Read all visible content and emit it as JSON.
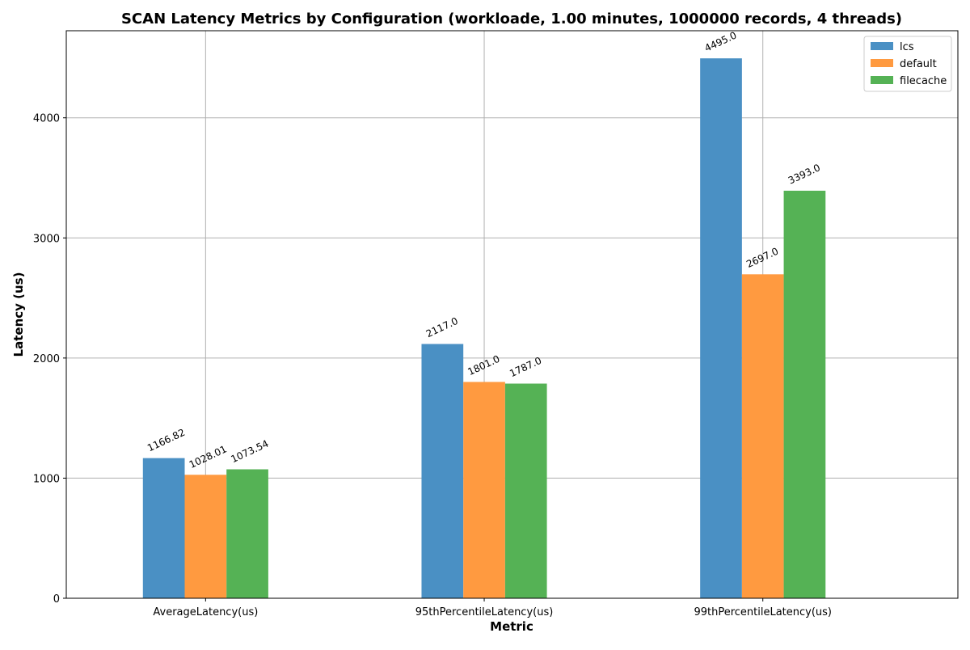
{
  "chart_data": {
    "type": "bar",
    "title": "SCAN Latency Metrics by Configuration (workloade, 1.00 minutes, 1000000 records, 4 threads)",
    "xlabel": "Metric",
    "ylabel": "Latency (us)",
    "categories": [
      "AverageLatency(us)",
      "95thPercentileLatency(us)",
      "99thPercentileLatency(us)"
    ],
    "series": [
      {
        "name": "lcs",
        "color": "#4a90c4",
        "values": [
          1166.82,
          2117.0,
          4495.0
        ],
        "labels": [
          "1166.82",
          "2117.0",
          "4495.0"
        ]
      },
      {
        "name": "default",
        "color": "#ff9a40",
        "values": [
          1028.01,
          1801.0,
          2697.0
        ],
        "labels": [
          "1028.01",
          "1801.0",
          "2697.0"
        ]
      },
      {
        "name": "filecache",
        "color": "#55b255",
        "values": [
          1073.54,
          1787.0,
          3393.0
        ],
        "labels": [
          "1073.54",
          "1787.0",
          "3393.0"
        ]
      }
    ],
    "ylim": [
      0,
      4725
    ],
    "yticks": [
      0,
      1000,
      2000,
      3000,
      4000
    ],
    "grid": true,
    "legend_position": "top-right"
  }
}
